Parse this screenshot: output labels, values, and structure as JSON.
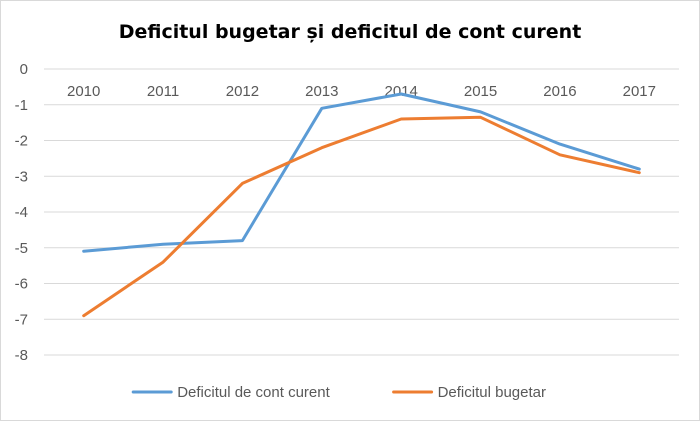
{
  "chart_data": {
    "type": "line",
    "title": "Deficitul bugetar și deficitul de cont curent",
    "xlabel": "",
    "ylabel": "",
    "categories": [
      "2010",
      "2011",
      "2012",
      "2013",
      "2014",
      "2015",
      "2016",
      "2017"
    ],
    "yticks": [
      "0",
      "-1",
      "-2",
      "-3",
      "-4",
      "-5",
      "-6",
      "-7",
      "-8"
    ],
    "ylim": [
      -8,
      0
    ],
    "grid": true,
    "legend_position": "bottom",
    "series": [
      {
        "name": "Deficitul de cont curent",
        "color": "#5b9bd5",
        "values": [
          -5.1,
          -4.9,
          -4.8,
          -1.1,
          -0.7,
          -1.2,
          -2.1,
          -2.8
        ]
      },
      {
        "name": "Deficitul bugetar",
        "color": "#ed7d31",
        "values": [
          -6.9,
          -5.4,
          -3.2,
          -2.2,
          -1.4,
          -1.35,
          -2.4,
          -2.9
        ]
      }
    ]
  }
}
